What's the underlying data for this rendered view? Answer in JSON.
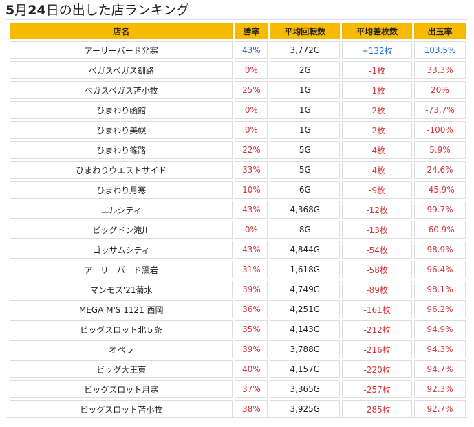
{
  "title": {
    "month": "5",
    "month_suffix": "月",
    "day": "24",
    "rest": "日の出した店ランキング"
  },
  "colors": {
    "header_bg": "#f8bb00",
    "positive": "#1f6fd8",
    "negative": "#d9343a"
  },
  "table": {
    "headers": {
      "name": "店名",
      "win": "勝率",
      "spin": "平均回転数",
      "diff": "平均差枚数",
      "rate": "出玉率"
    },
    "rows": [
      {
        "name": "アーリーバード発寒",
        "win": "43%",
        "spin": "3,772G",
        "diff": "+132枚",
        "rate": "103.5%",
        "sign": "pos"
      },
      {
        "name": "ベガスベガス釧路",
        "win": "0%",
        "spin": "2G",
        "diff": "-1枚",
        "rate": "33.3%",
        "sign": "neg"
      },
      {
        "name": "ベガスベガス苫小牧",
        "win": "25%",
        "spin": "1G",
        "diff": "-1枚",
        "rate": "20%",
        "sign": "neg"
      },
      {
        "name": "ひまわり函館",
        "win": "0%",
        "spin": "1G",
        "diff": "-2枚",
        "rate": "-73.7%",
        "sign": "neg"
      },
      {
        "name": "ひまわり美幌",
        "win": "0%",
        "spin": "1G",
        "diff": "-2枚",
        "rate": "-100%",
        "sign": "neg"
      },
      {
        "name": "ひまわり篠路",
        "win": "22%",
        "spin": "5G",
        "diff": "-4枚",
        "rate": "5.9%",
        "sign": "neg"
      },
      {
        "name": "ひまわりウエストサイド",
        "win": "33%",
        "spin": "5G",
        "diff": "-4枚",
        "rate": "24.6%",
        "sign": "neg"
      },
      {
        "name": "ひまわり月寒",
        "win": "10%",
        "spin": "6G",
        "diff": "-9枚",
        "rate": "-45.9%",
        "sign": "neg"
      },
      {
        "name": "エルシティ",
        "win": "43%",
        "spin": "4,368G",
        "diff": "-12枚",
        "rate": "99.7%",
        "sign": "neg"
      },
      {
        "name": "ビッグドン滝川",
        "win": "0%",
        "spin": "8G",
        "diff": "-13枚",
        "rate": "-60.9%",
        "sign": "neg"
      },
      {
        "name": "ゴッサムシティ",
        "win": "43%",
        "spin": "4,844G",
        "diff": "-54枚",
        "rate": "98.9%",
        "sign": "neg"
      },
      {
        "name": "アーリーバード藻岩",
        "win": "31%",
        "spin": "1,618G",
        "diff": "-58枚",
        "rate": "96.4%",
        "sign": "neg"
      },
      {
        "name": "マンモス'21菊水",
        "win": "39%",
        "spin": "4,749G",
        "diff": "-89枚",
        "rate": "98.1%",
        "sign": "neg"
      },
      {
        "name": "MEGA M'S 1121 西岡",
        "win": "36%",
        "spin": "4,251G",
        "diff": "-161枚",
        "rate": "96.2%",
        "sign": "neg"
      },
      {
        "name": "ビッグスロット北５条",
        "win": "35%",
        "spin": "4,143G",
        "diff": "-212枚",
        "rate": "94.9%",
        "sign": "neg"
      },
      {
        "name": "オペラ",
        "win": "39%",
        "spin": "3,788G",
        "diff": "-216枚",
        "rate": "94.3%",
        "sign": "neg"
      },
      {
        "name": "ビッグ大王東",
        "win": "40%",
        "spin": "4,157G",
        "diff": "-220枚",
        "rate": "94.7%",
        "sign": "neg"
      },
      {
        "name": "ビッグスロット月寒",
        "win": "37%",
        "spin": "3,365G",
        "diff": "-257枚",
        "rate": "92.3%",
        "sign": "neg"
      },
      {
        "name": "ビッグスロット苫小牧",
        "win": "38%",
        "spin": "3,925G",
        "diff": "-285枚",
        "rate": "92.7%",
        "sign": "neg"
      }
    ]
  }
}
